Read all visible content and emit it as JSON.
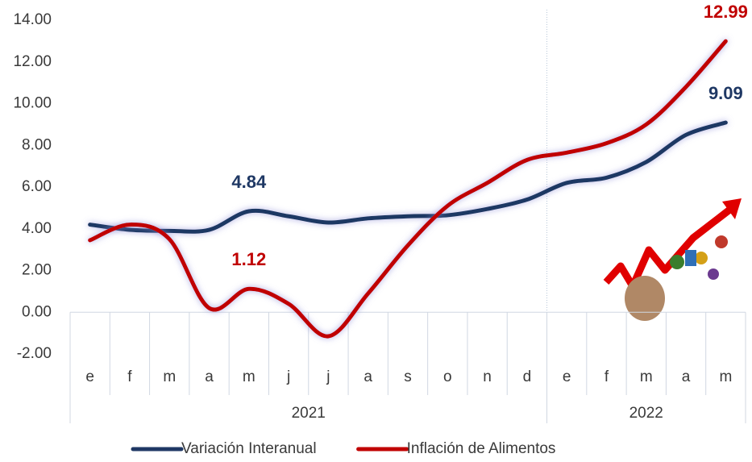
{
  "chart_data": {
    "type": "line",
    "groups": [
      {
        "label": "2021",
        "categories": [
          "e",
          "f",
          "m",
          "a",
          "m",
          "j",
          "j",
          "a",
          "s",
          "o",
          "n",
          "d"
        ]
      },
      {
        "label": "2022",
        "categories": [
          "e",
          "f",
          "m",
          "a",
          "m"
        ]
      }
    ],
    "series": [
      {
        "name": "Variación Interanual",
        "color": "#1f3864",
        "values": [
          4.2,
          3.95,
          3.9,
          3.95,
          4.84,
          4.6,
          4.3,
          4.5,
          4.6,
          4.65,
          4.95,
          5.4,
          6.2,
          6.45,
          7.2,
          8.5,
          9.09
        ],
        "value_labels": [
          null,
          null,
          null,
          null,
          "4.84",
          null,
          null,
          null,
          null,
          null,
          null,
          null,
          null,
          null,
          null,
          null,
          "9.09"
        ]
      },
      {
        "name": "Inflación de Alimentos",
        "color": "#c00000",
        "values": [
          3.45,
          4.2,
          3.5,
          0.2,
          1.12,
          0.4,
          -1.15,
          0.9,
          3.2,
          5.1,
          6.2,
          7.3,
          7.65,
          8.1,
          9.0,
          10.8,
          12.99
        ],
        "value_labels": [
          null,
          null,
          null,
          null,
          "1.12",
          null,
          null,
          null,
          null,
          null,
          null,
          null,
          null,
          null,
          null,
          null,
          "12.99"
        ]
      }
    ],
    "ylim": [
      -2,
      14
    ],
    "yticks": [
      {
        "value": -2,
        "label": "-2.00"
      },
      {
        "value": 0,
        "label": "0.00"
      },
      {
        "value": 2,
        "label": "2.00"
      },
      {
        "value": 4,
        "label": "4.00"
      },
      {
        "value": 6,
        "label": "6.00"
      },
      {
        "value": 8,
        "label": "8.00"
      },
      {
        "value": 10,
        "label": "10.00"
      },
      {
        "value": 12,
        "label": "12.00"
      },
      {
        "value": 14,
        "label": "14.00"
      }
    ],
    "legend": "bottom"
  }
}
